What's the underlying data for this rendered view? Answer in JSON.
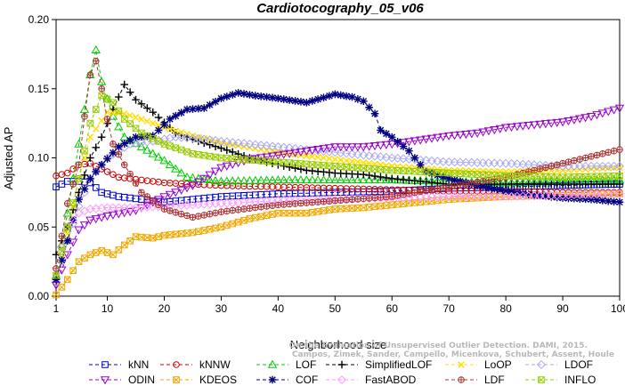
{
  "chart_data": {
    "type": "line",
    "title": "Cardiotocography_05_v06",
    "xlabel": "Neighborhood size",
    "ylabel": "Adjusted AP",
    "xlim": [
      1,
      100
    ],
    "ylim": [
      0,
      0.2
    ],
    "xticks": [
      1,
      10,
      20,
      30,
      40,
      50,
      60,
      70,
      80,
      90,
      100
    ],
    "yticks": [
      "0.00",
      "0.05",
      "0.10",
      "0.15",
      "0.20"
    ],
    "grid": false,
    "legend_position": "bottom",
    "watermark": [
      "Campos, Zimek, Sander, Campello, Micenkova, Schubert, Assent, Houle",
      "On the Evaluation of Unsupervised Outlier Detection. DAMI, 2015."
    ],
    "series": [
      {
        "name": "kNN",
        "color": "#0000cc",
        "marker": "square",
        "dash": "4,3",
        "points": [
          [
            1,
            0.079
          ],
          [
            3,
            0.083
          ],
          [
            5,
            0.083
          ],
          [
            7,
            0.082
          ],
          [
            9,
            0.075
          ],
          [
            12,
            0.072
          ],
          [
            16,
            0.07
          ],
          [
            20,
            0.068
          ],
          [
            25,
            0.07
          ],
          [
            30,
            0.072
          ],
          [
            40,
            0.074
          ],
          [
            50,
            0.075
          ],
          [
            60,
            0.076
          ],
          [
            70,
            0.078
          ],
          [
            80,
            0.079
          ],
          [
            90,
            0.08
          ],
          [
            100,
            0.081
          ]
        ]
      },
      {
        "name": "kNNW",
        "color": "#cc0000",
        "marker": "circle",
        "dash": "4,3",
        "points": [
          [
            1,
            0.087
          ],
          [
            3,
            0.089
          ],
          [
            5,
            0.095
          ],
          [
            7,
            0.096
          ],
          [
            9,
            0.092
          ],
          [
            12,
            0.086
          ],
          [
            16,
            0.084
          ],
          [
            20,
            0.082
          ],
          [
            25,
            0.081
          ],
          [
            30,
            0.08
          ],
          [
            40,
            0.079
          ],
          [
            50,
            0.078
          ],
          [
            60,
            0.077
          ],
          [
            70,
            0.076
          ],
          [
            80,
            0.076
          ],
          [
            90,
            0.075
          ],
          [
            100,
            0.075
          ]
        ]
      },
      {
        "name": "LOF",
        "color": "#00cc00",
        "marker": "triangle",
        "dash": "4,3",
        "points": [
          [
            1,
            0.015
          ],
          [
            3,
            0.06
          ],
          [
            5,
            0.11
          ],
          [
            6,
            0.135
          ],
          [
            7,
            0.16
          ],
          [
            8,
            0.178
          ],
          [
            9,
            0.155
          ],
          [
            11,
            0.13
          ],
          [
            13,
            0.115
          ],
          [
            16,
            0.108
          ],
          [
            20,
            0.098
          ],
          [
            24,
            0.086
          ],
          [
            30,
            0.083
          ],
          [
            40,
            0.084
          ],
          [
            50,
            0.084
          ],
          [
            60,
            0.084
          ],
          [
            70,
            0.083
          ],
          [
            80,
            0.082
          ],
          [
            90,
            0.083
          ],
          [
            100,
            0.084
          ]
        ]
      },
      {
        "name": "SimplifiedLOF",
        "color": "#000000",
        "marker": "plus",
        "dash": "4,3",
        "points": [
          [
            1,
            0.03
          ],
          [
            3,
            0.05
          ],
          [
            5,
            0.075
          ],
          [
            7,
            0.1
          ],
          [
            9,
            0.115
          ],
          [
            11,
            0.135
          ],
          [
            13,
            0.153
          ],
          [
            15,
            0.142
          ],
          [
            18,
            0.133
          ],
          [
            22,
            0.118
          ],
          [
            26,
            0.112
          ],
          [
            30,
            0.107
          ],
          [
            35,
            0.1
          ],
          [
            40,
            0.095
          ],
          [
            45,
            0.091
          ],
          [
            50,
            0.089
          ],
          [
            55,
            0.088
          ],
          [
            60,
            0.085
          ],
          [
            65,
            0.083
          ],
          [
            70,
            0.081
          ],
          [
            80,
            0.081
          ],
          [
            90,
            0.081
          ],
          [
            100,
            0.081
          ]
        ]
      },
      {
        "name": "LoOP",
        "color": "#ffdd00",
        "marker": "x",
        "dash": "4,3",
        "points": [
          [
            1,
            0.01
          ],
          [
            3,
            0.045
          ],
          [
            5,
            0.085
          ],
          [
            7,
            0.115
          ],
          [
            10,
            0.133
          ],
          [
            13,
            0.132
          ],
          [
            16,
            0.128
          ],
          [
            20,
            0.122
          ],
          [
            25,
            0.116
          ],
          [
            30,
            0.111
          ],
          [
            40,
            0.104
          ],
          [
            50,
            0.099
          ],
          [
            60,
            0.094
          ],
          [
            70,
            0.091
          ],
          [
            80,
            0.09
          ],
          [
            90,
            0.091
          ],
          [
            100,
            0.093
          ]
        ]
      },
      {
        "name": "LDOF",
        "color": "#aaaaee",
        "marker": "diamond",
        "dash": "4,3",
        "points": [
          [
            1,
            0.01
          ],
          [
            3,
            0.04
          ],
          [
            5,
            0.065
          ],
          [
            7,
            0.085
          ],
          [
            10,
            0.1
          ],
          [
            14,
            0.11
          ],
          [
            18,
            0.112
          ],
          [
            22,
            0.115
          ],
          [
            26,
            0.114
          ],
          [
            30,
            0.112
          ],
          [
            40,
            0.108
          ],
          [
            50,
            0.104
          ],
          [
            60,
            0.1
          ],
          [
            70,
            0.097
          ],
          [
            80,
            0.096
          ],
          [
            90,
            0.094
          ],
          [
            100,
            0.094
          ]
        ]
      },
      {
        "name": "ODIN",
        "color": "#9900cc",
        "marker": "triangle-down",
        "dash": "4,3",
        "points": [
          [
            1,
            0.008
          ],
          [
            3,
            0.03
          ],
          [
            5,
            0.048
          ],
          [
            7,
            0.055
          ],
          [
            10,
            0.058
          ],
          [
            15,
            0.062
          ],
          [
            20,
            0.072
          ],
          [
            25,
            0.08
          ],
          [
            30,
            0.093
          ],
          [
            35,
            0.099
          ],
          [
            40,
            0.102
          ],
          [
            45,
            0.105
          ],
          [
            50,
            0.108
          ],
          [
            55,
            0.108
          ],
          [
            60,
            0.11
          ],
          [
            65,
            0.113
          ],
          [
            70,
            0.116
          ],
          [
            75,
            0.118
          ],
          [
            80,
            0.122
          ],
          [
            85,
            0.124
          ],
          [
            90,
            0.126
          ],
          [
            95,
            0.13
          ],
          [
            100,
            0.136
          ]
        ]
      },
      {
        "name": "KDEOS",
        "color": "#f0a800",
        "marker": "box-x",
        "dash": "4,3",
        "points": [
          [
            1,
            0.001
          ],
          [
            3,
            0.012
          ],
          [
            5,
            0.025
          ],
          [
            7,
            0.03
          ],
          [
            9,
            0.033
          ],
          [
            11,
            0.03
          ],
          [
            13,
            0.037
          ],
          [
            15,
            0.043
          ],
          [
            18,
            0.042
          ],
          [
            20,
            0.044
          ],
          [
            25,
            0.046
          ],
          [
            30,
            0.05
          ],
          [
            35,
            0.056
          ],
          [
            40,
            0.06
          ],
          [
            45,
            0.06
          ],
          [
            50,
            0.063
          ],
          [
            55,
            0.064
          ],
          [
            60,
            0.066
          ],
          [
            65,
            0.068
          ],
          [
            70,
            0.07
          ],
          [
            80,
            0.072
          ],
          [
            90,
            0.073
          ],
          [
            100,
            0.074
          ]
        ]
      },
      {
        "name": "COF",
        "color": "#000080",
        "marker": "asterisk",
        "dash": "4,3",
        "points": [
          [
            1,
            0.012
          ],
          [
            3,
            0.04
          ],
          [
            5,
            0.07
          ],
          [
            7,
            0.085
          ],
          [
            9,
            0.095
          ],
          [
            12,
            0.108
          ],
          [
            15,
            0.115
          ],
          [
            18,
            0.116
          ],
          [
            21,
            0.128
          ],
          [
            24,
            0.135
          ],
          [
            27,
            0.136
          ],
          [
            30,
            0.143
          ],
          [
            33,
            0.147
          ],
          [
            36,
            0.145
          ],
          [
            40,
            0.143
          ],
          [
            45,
            0.14
          ],
          [
            50,
            0.146
          ],
          [
            53,
            0.144
          ],
          [
            55,
            0.141
          ],
          [
            57,
            0.132
          ],
          [
            58,
            0.12
          ],
          [
            60,
            0.115
          ],
          [
            63,
            0.105
          ],
          [
            66,
            0.09
          ],
          [
            70,
            0.085
          ],
          [
            75,
            0.08
          ],
          [
            80,
            0.076
          ],
          [
            85,
            0.073
          ],
          [
            90,
            0.071
          ],
          [
            95,
            0.07
          ],
          [
            100,
            0.068
          ]
        ]
      },
      {
        "name": "FastABOD",
        "color": "#ff99ff",
        "marker": "diamond",
        "dash": "4,3",
        "points": [
          [
            1,
            0.02
          ],
          [
            3,
            0.05
          ],
          [
            5,
            0.06
          ],
          [
            7,
            0.063
          ],
          [
            10,
            0.064
          ],
          [
            15,
            0.064
          ],
          [
            20,
            0.065
          ],
          [
            30,
            0.067
          ],
          [
            40,
            0.069
          ],
          [
            50,
            0.07
          ],
          [
            60,
            0.071
          ],
          [
            70,
            0.072
          ],
          [
            80,
            0.072
          ],
          [
            90,
            0.073
          ],
          [
            100,
            0.074
          ]
        ]
      },
      {
        "name": "LDF",
        "color": "#aa3333",
        "marker": "circle-plus",
        "dash": "4,3",
        "points": [
          [
            1,
            0.02
          ],
          [
            3,
            0.067
          ],
          [
            5,
            0.095
          ],
          [
            6,
            0.13
          ],
          [
            7,
            0.16
          ],
          [
            8,
            0.17
          ],
          [
            9,
            0.15
          ],
          [
            10,
            0.128
          ],
          [
            11,
            0.11
          ],
          [
            13,
            0.095
          ],
          [
            16,
            0.075
          ],
          [
            20,
            0.063
          ],
          [
            25,
            0.057
          ],
          [
            30,
            0.061
          ],
          [
            40,
            0.066
          ],
          [
            50,
            0.069
          ],
          [
            60,
            0.072
          ],
          [
            70,
            0.079
          ],
          [
            80,
            0.086
          ],
          [
            90,
            0.096
          ],
          [
            100,
            0.106
          ]
        ]
      },
      {
        "name": "INFLO",
        "color": "#99cc00",
        "marker": "box-x",
        "dash": "4,3",
        "points": [
          [
            1,
            0.015
          ],
          [
            3,
            0.05
          ],
          [
            5,
            0.085
          ],
          [
            7,
            0.125
          ],
          [
            9,
            0.145
          ],
          [
            11,
            0.14
          ],
          [
            13,
            0.128
          ],
          [
            16,
            0.118
          ],
          [
            20,
            0.11
          ],
          [
            25,
            0.103
          ],
          [
            30,
            0.1
          ],
          [
            40,
            0.097
          ],
          [
            50,
            0.094
          ],
          [
            60,
            0.091
          ],
          [
            70,
            0.089
          ],
          [
            80,
            0.087
          ],
          [
            90,
            0.086
          ],
          [
            100,
            0.087
          ]
        ]
      }
    ]
  }
}
